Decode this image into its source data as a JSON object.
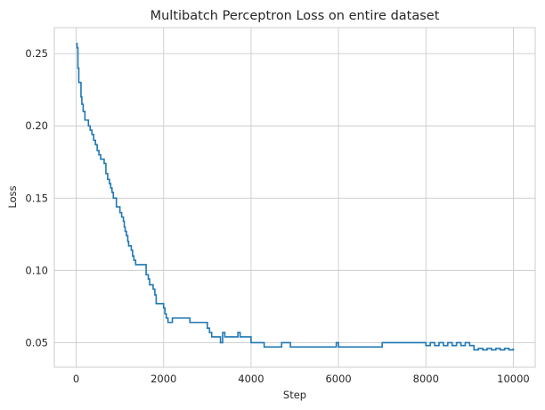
{
  "chart_data": {
    "type": "line",
    "title": "Multibatch Perceptron Loss on entire dataset",
    "xlabel": "Step",
    "ylabel": "Loss",
    "xlim": [
      -500,
      10500
    ],
    "ylim": [
      0.033,
      0.268
    ],
    "xticks": [
      0,
      2000,
      4000,
      6000,
      8000,
      10000
    ],
    "xtick_labels": [
      "0",
      "2000",
      "4000",
      "6000",
      "8000",
      "10000"
    ],
    "yticks": [
      0.05,
      0.1,
      0.15,
      0.2,
      0.25
    ],
    "ytick_labels": [
      "0.05",
      "0.10",
      "0.15",
      "0.20",
      "0.25"
    ],
    "grid": true,
    "legend": "none",
    "series": [
      {
        "color": "#1f77b4",
        "step": true,
        "x": [
          0,
          20,
          40,
          60,
          80,
          110,
          130,
          160,
          200,
          240,
          280,
          320,
          360,
          400,
          440,
          480,
          520,
          560,
          600,
          640,
          680,
          720,
          760,
          790,
          820,
          850,
          880,
          920,
          960,
          1000,
          1040,
          1080,
          1100,
          1120,
          1150,
          1180,
          1200,
          1230,
          1260,
          1290,
          1320,
          1360,
          1400,
          1500,
          1600,
          1650,
          1680,
          1720,
          1760,
          1800,
          1830,
          1860,
          1900,
          1950,
          2000,
          2030,
          2060,
          2100,
          2200,
          2300,
          2400,
          2500,
          2600,
          2700,
          2800,
          2900,
          3000,
          3050,
          3100,
          3200,
          3300,
          3350,
          3400,
          3450,
          3500,
          3600,
          3700,
          3750,
          3800,
          3900,
          4000,
          4100,
          4200,
          4300,
          4400,
          4500,
          4600,
          4700,
          4800,
          4900,
          5000,
          5500,
          5900,
          5950,
          6000,
          6500,
          7000,
          7500,
          8000,
          8100,
          8200,
          8300,
          8400,
          8500,
          8600,
          8700,
          8800,
          8900,
          9000,
          9100,
          9200,
          9300,
          9400,
          9500,
          9600,
          9700,
          9800,
          9900,
          10000
        ],
        "y": [
          0.257,
          0.254,
          0.24,
          0.23,
          0.23,
          0.22,
          0.215,
          0.21,
          0.204,
          0.204,
          0.2,
          0.197,
          0.194,
          0.19,
          0.187,
          0.183,
          0.18,
          0.177,
          0.177,
          0.174,
          0.167,
          0.163,
          0.16,
          0.157,
          0.154,
          0.15,
          0.15,
          0.144,
          0.144,
          0.14,
          0.137,
          0.134,
          0.13,
          0.127,
          0.124,
          0.12,
          0.117,
          0.117,
          0.114,
          0.11,
          0.107,
          0.104,
          0.104,
          0.104,
          0.097,
          0.094,
          0.09,
          0.09,
          0.087,
          0.083,
          0.077,
          0.077,
          0.077,
          0.077,
          0.074,
          0.07,
          0.067,
          0.064,
          0.067,
          0.067,
          0.067,
          0.067,
          0.064,
          0.064,
          0.064,
          0.064,
          0.06,
          0.057,
          0.054,
          0.054,
          0.05,
          0.057,
          0.054,
          0.054,
          0.054,
          0.054,
          0.057,
          0.054,
          0.054,
          0.054,
          0.05,
          0.05,
          0.05,
          0.047,
          0.047,
          0.047,
          0.047,
          0.05,
          0.05,
          0.047,
          0.047,
          0.047,
          0.047,
          0.05,
          0.047,
          0.047,
          0.05,
          0.05,
          0.048,
          0.05,
          0.048,
          0.05,
          0.048,
          0.05,
          0.048,
          0.05,
          0.048,
          0.05,
          0.048,
          0.045,
          0.046,
          0.045,
          0.046,
          0.045,
          0.046,
          0.045,
          0.046,
          0.045,
          0.046
        ]
      }
    ]
  }
}
